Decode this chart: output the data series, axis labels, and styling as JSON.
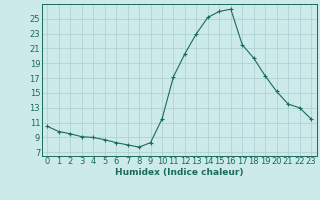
{
  "x": [
    0,
    1,
    2,
    3,
    4,
    5,
    6,
    7,
    8,
    9,
    10,
    11,
    12,
    13,
    14,
    15,
    16,
    17,
    18,
    19,
    20,
    21,
    22,
    23
  ],
  "y": [
    10.5,
    9.8,
    9.5,
    9.1,
    9.0,
    8.7,
    8.3,
    8.0,
    7.7,
    8.3,
    11.5,
    17.2,
    20.3,
    23.0,
    25.2,
    26.0,
    26.3,
    21.5,
    19.7,
    17.3,
    15.2,
    13.5,
    13.0,
    11.5
  ],
  "line_color": "#1a6b5a",
  "marker": "+",
  "marker_size": 3,
  "bg_color": "#cceaea",
  "grid_color": "#aacece",
  "xlabel": "Humidex (Indice chaleur)",
  "yticks": [
    7,
    9,
    11,
    13,
    15,
    17,
    19,
    21,
    23,
    25
  ],
  "xticks": [
    0,
    1,
    2,
    3,
    4,
    5,
    6,
    7,
    8,
    9,
    10,
    11,
    12,
    13,
    14,
    15,
    16,
    17,
    18,
    19,
    20,
    21,
    22,
    23
  ],
  "ylim": [
    6.5,
    27.0
  ],
  "xlim": [
    -0.5,
    23.5
  ],
  "xlabel_fontsize": 6.5,
  "tick_fontsize": 6.0,
  "label_color": "#1a6b5a"
}
